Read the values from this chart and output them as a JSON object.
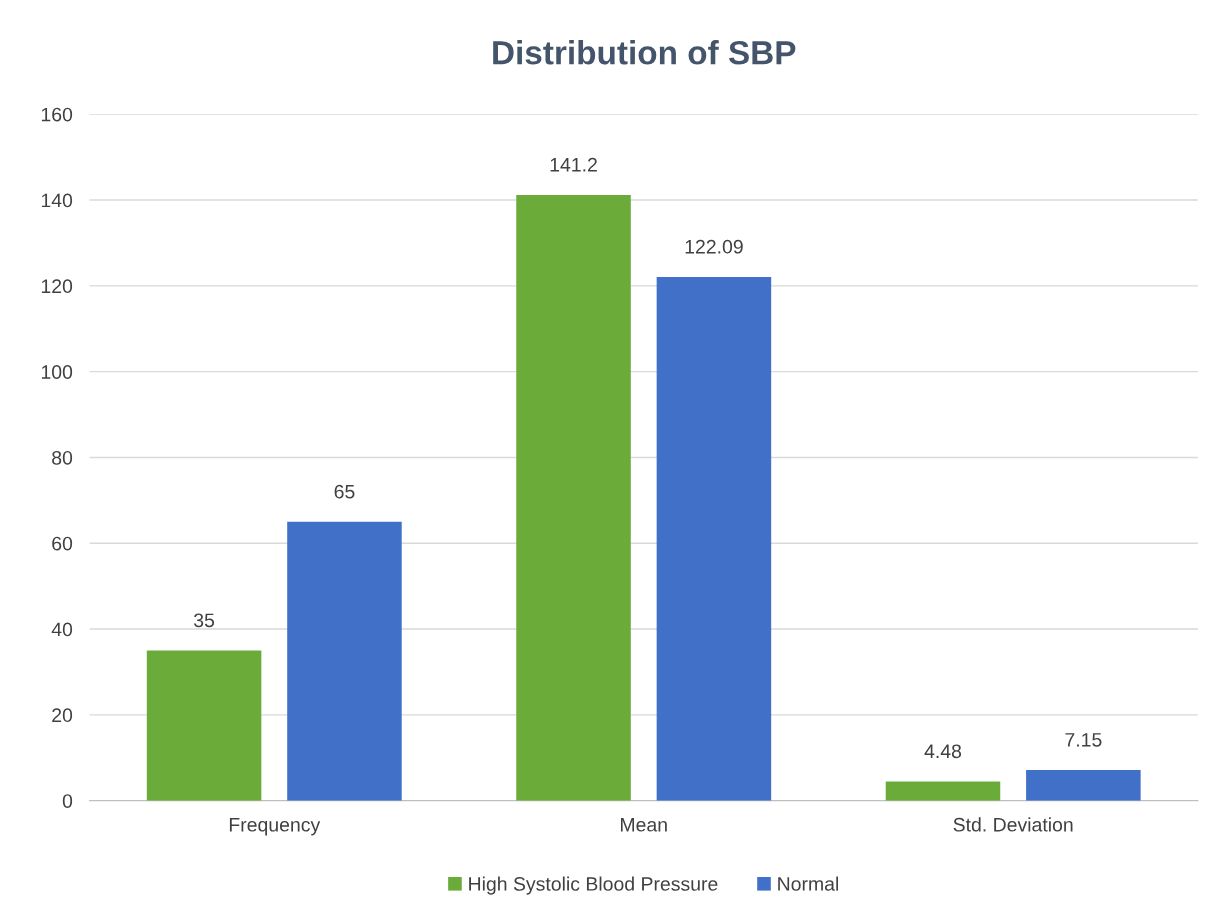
{
  "chart_data": {
    "type": "bar",
    "title": "Distribution of SBP",
    "categories": [
      "Frequency",
      "Mean",
      "Std. Deviation"
    ],
    "series": [
      {
        "name": "High Systolic Blood Pressure",
        "color": "#6aab3a",
        "values": [
          35,
          141.2,
          4.48
        ]
      },
      {
        "name": "Normal",
        "color": "#4070c8",
        "values": [
          65,
          122.09,
          7.15
        ]
      }
    ],
    "ylim": [
      0,
      160
    ],
    "yticks": [
      0,
      20,
      40,
      60,
      80,
      100,
      120,
      140,
      160
    ],
    "grid": "y",
    "legend": "bottom",
    "data_labels": true
  }
}
